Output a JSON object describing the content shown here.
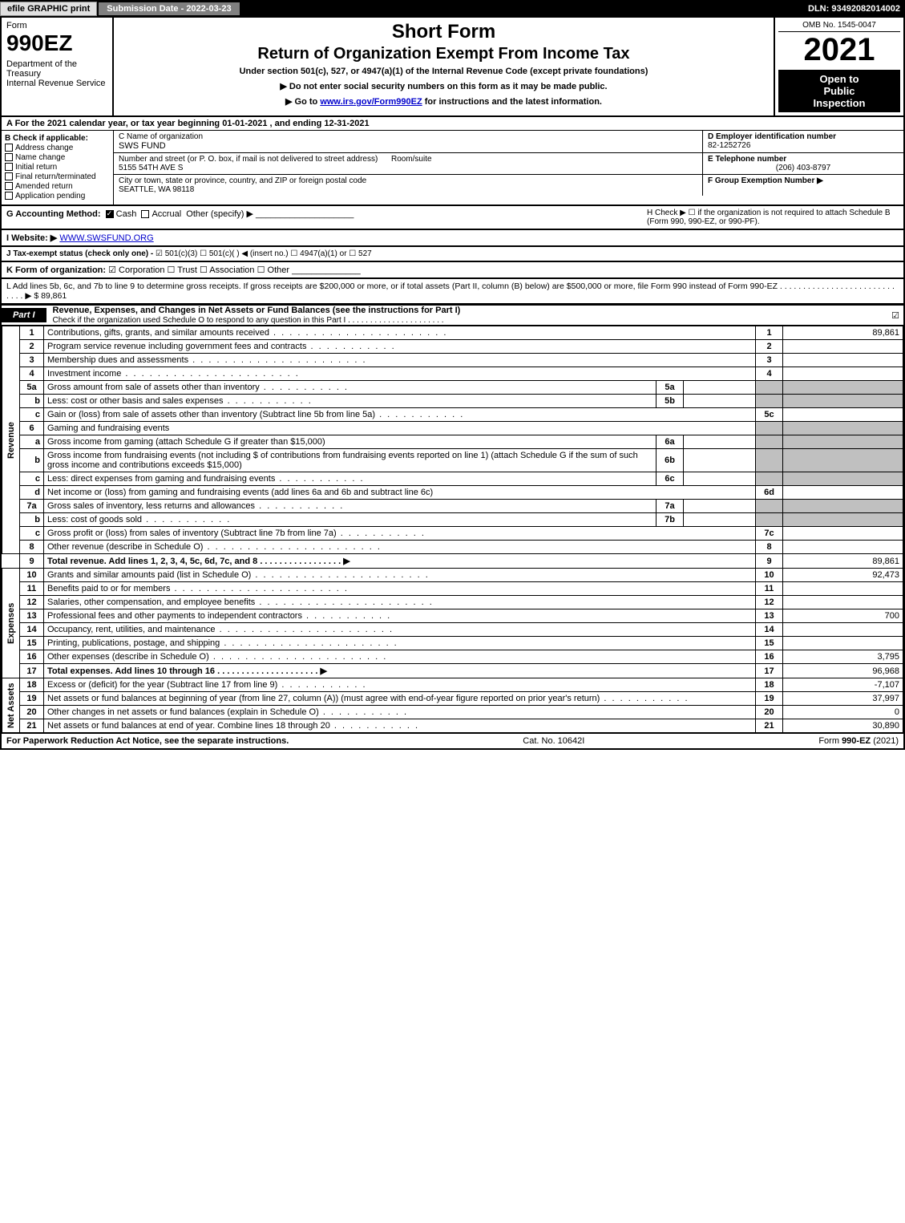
{
  "topbar": {
    "efile": "efile GRAPHIC print",
    "submission_label": "Submission Date - 2022-03-23",
    "dln": "DLN: 93492082014002"
  },
  "header": {
    "form_word": "Form",
    "form_number": "990EZ",
    "dept": "Department of the Treasury\nInternal Revenue Service",
    "title1": "Short Form",
    "title2": "Return of Organization Exempt From Income Tax",
    "subtitle": "Under section 501(c), 527, or 4947(a)(1) of the Internal Revenue Code (except private foundations)",
    "arrow1": "▶ Do not enter social security numbers on this form as it may be made public.",
    "arrow2_pre": "▶ Go to ",
    "arrow2_link": "www.irs.gov/Form990EZ",
    "arrow2_post": " for instructions and the latest information.",
    "omb": "OMB No. 1545-0047",
    "year": "2021",
    "open1": "Open to",
    "open2": "Public",
    "open3": "Inspection"
  },
  "sectionA": "A  For the 2021 calendar year, or tax year beginning 01-01-2021 , and ending 12-31-2021",
  "sectionB": {
    "title": "B  Check if applicable:",
    "opts": [
      "Address change",
      "Name change",
      "Initial return",
      "Final return/terminated",
      "Amended return",
      "Application pending"
    ]
  },
  "sectionC": {
    "name_label": "C Name of organization",
    "name": "SWS FUND",
    "street_label": "Number and street (or P. O. box, if mail is not delivered to street address)",
    "room_label": "Room/suite",
    "street": "5155 54TH AVE S",
    "city_label": "City or town, state or province, country, and ZIP or foreign postal code",
    "city": "SEATTLE, WA  98118"
  },
  "sectionD": {
    "label": "D Employer identification number",
    "value": "82-1252726"
  },
  "sectionE": {
    "label": "E Telephone number",
    "value": "(206) 403-8797"
  },
  "sectionF": {
    "label": "F Group Exemption Number  ▶",
    "value": ""
  },
  "sectionG": {
    "label": "G Accounting Method:",
    "cash": "Cash",
    "accrual": "Accrual",
    "other": "Other (specify) ▶"
  },
  "sectionH": {
    "text": "H  Check ▶  ☐  if the organization is not required to attach Schedule B (Form 990, 990-EZ, or 990-PF)."
  },
  "sectionI": {
    "label": "I Website: ▶",
    "value": "WWW.SWSFUND.ORG"
  },
  "sectionJ": {
    "label": "J Tax-exempt status (check only one) -",
    "opts": "☑ 501(c)(3)  ☐ 501(c)(  ) ◀ (insert no.)  ☐ 4947(a)(1) or  ☐ 527"
  },
  "sectionK": {
    "label": "K Form of organization:",
    "opts": "☑ Corporation  ☐ Trust  ☐ Association  ☐ Other"
  },
  "sectionL": {
    "text": "L Add lines 5b, 6c, and 7b to line 9 to determine gross receipts. If gross receipts are $200,000 or more, or if total assets (Part II, column (B) below) are $500,000 or more, file Form 990 instead of Form 990-EZ .  .  .  .  .  .  .  .  .  .  .  .  .  .  .  .  .  .  .  .  .  .  .  .  .  .  .  .  .  ▶ $ 89,861"
  },
  "partI": {
    "tab": "Part I",
    "title": "Revenue, Expenses, and Changes in Net Assets or Fund Balances (see the instructions for Part I)",
    "check_line": "Check if the organization used Schedule O to respond to any question in this Part I .  .  .  .  .  .  .  .  .  .  .  .  .  .  .  .  .  .  .  .  .  .",
    "checked": "☑"
  },
  "lines": {
    "l1": {
      "n": "1",
      "d": "Contributions, gifts, grants, and similar amounts received",
      "c": "1",
      "a": "89,861"
    },
    "l2": {
      "n": "2",
      "d": "Program service revenue including government fees and contracts",
      "c": "2",
      "a": ""
    },
    "l3": {
      "n": "3",
      "d": "Membership dues and assessments",
      "c": "3",
      "a": ""
    },
    "l4": {
      "n": "4",
      "d": "Investment income",
      "c": "4",
      "a": ""
    },
    "l5a": {
      "n": "5a",
      "d": "Gross amount from sale of assets other than inventory",
      "box": "5a",
      "bv": ""
    },
    "l5b": {
      "n": "b",
      "d": "Less: cost or other basis and sales expenses",
      "box": "5b",
      "bv": ""
    },
    "l5c": {
      "n": "c",
      "d": "Gain or (loss) from sale of assets other than inventory (Subtract line 5b from line 5a)",
      "c": "5c",
      "a": ""
    },
    "l6": {
      "n": "6",
      "d": "Gaming and fundraising events"
    },
    "l6a": {
      "n": "a",
      "d": "Gross income from gaming (attach Schedule G if greater than $15,000)",
      "box": "6a",
      "bv": ""
    },
    "l6b": {
      "n": "b",
      "d": "Gross income from fundraising events (not including $               of contributions from fundraising events reported on line 1) (attach Schedule G if the sum of such gross income and contributions exceeds $15,000)",
      "box": "6b",
      "bv": ""
    },
    "l6c": {
      "n": "c",
      "d": "Less: direct expenses from gaming and fundraising events",
      "box": "6c",
      "bv": ""
    },
    "l6d": {
      "n": "d",
      "d": "Net income or (loss) from gaming and fundraising events (add lines 6a and 6b and subtract line 6c)",
      "c": "6d",
      "a": ""
    },
    "l7a": {
      "n": "7a",
      "d": "Gross sales of inventory, less returns and allowances",
      "box": "7a",
      "bv": ""
    },
    "l7b": {
      "n": "b",
      "d": "Less: cost of goods sold",
      "box": "7b",
      "bv": ""
    },
    "l7c": {
      "n": "c",
      "d": "Gross profit or (loss) from sales of inventory (Subtract line 7b from line 7a)",
      "c": "7c",
      "a": ""
    },
    "l8": {
      "n": "8",
      "d": "Other revenue (describe in Schedule O)",
      "c": "8",
      "a": ""
    },
    "l9": {
      "n": "9",
      "d": "Total revenue. Add lines 1, 2, 3, 4, 5c, 6d, 7c, and 8   .  .  .  .  .  .  .  .  .  .  .  .  .  .  .  .  .  ▶",
      "c": "9",
      "a": "89,861"
    },
    "l10": {
      "n": "10",
      "d": "Grants and similar amounts paid (list in Schedule O)",
      "c": "10",
      "a": "92,473"
    },
    "l11": {
      "n": "11",
      "d": "Benefits paid to or for members",
      "c": "11",
      "a": ""
    },
    "l12": {
      "n": "12",
      "d": "Salaries, other compensation, and employee benefits",
      "c": "12",
      "a": ""
    },
    "l13": {
      "n": "13",
      "d": "Professional fees and other payments to independent contractors",
      "c": "13",
      "a": "700"
    },
    "l14": {
      "n": "14",
      "d": "Occupancy, rent, utilities, and maintenance",
      "c": "14",
      "a": ""
    },
    "l15": {
      "n": "15",
      "d": "Printing, publications, postage, and shipping",
      "c": "15",
      "a": ""
    },
    "l16": {
      "n": "16",
      "d": "Other expenses (describe in Schedule O)",
      "c": "16",
      "a": "3,795"
    },
    "l17": {
      "n": "17",
      "d": "Total expenses. Add lines 10 through 16   .  .  .  .  .  .  .  .  .  .  .  .  .  .  .  .  .  .  .  .  .  ▶",
      "c": "17",
      "a": "96,968"
    },
    "l18": {
      "n": "18",
      "d": "Excess or (deficit) for the year (Subtract line 17 from line 9)",
      "c": "18",
      "a": "-7,107"
    },
    "l19": {
      "n": "19",
      "d": "Net assets or fund balances at beginning of year (from line 27, column (A)) (must agree with end-of-year figure reported on prior year's return)",
      "c": "19",
      "a": "37,997"
    },
    "l20": {
      "n": "20",
      "d": "Other changes in net assets or fund balances (explain in Schedule O)",
      "c": "20",
      "a": "0"
    },
    "l21": {
      "n": "21",
      "d": "Net assets or fund balances at end of year. Combine lines 18 through 20",
      "c": "21",
      "a": "30,890"
    }
  },
  "side_labels": {
    "revenue": "Revenue",
    "expenses": "Expenses",
    "netassets": "Net Assets"
  },
  "footer": {
    "left": "For Paperwork Reduction Act Notice, see the separate instructions.",
    "center": "Cat. No. 10642I",
    "right_pre": "Form ",
    "right_form": "990-EZ",
    "right_post": " (2021)"
  },
  "colors": {
    "black": "#000000",
    "gray": "#808080",
    "lightgray": "#c0c0c0",
    "link": "#0000cc",
    "white": "#ffffff"
  }
}
